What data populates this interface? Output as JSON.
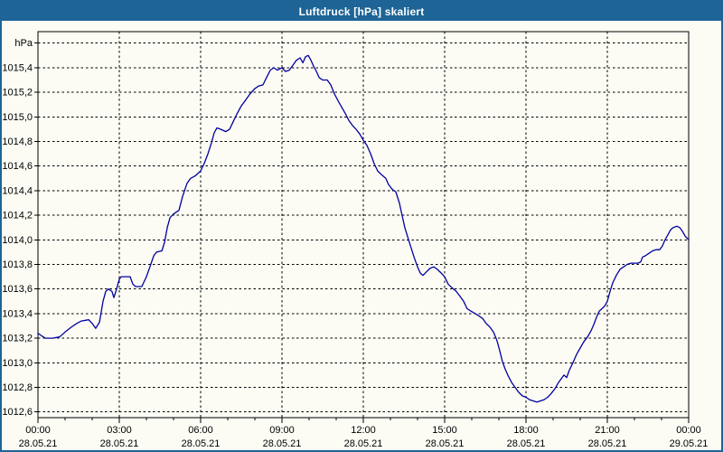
{
  "window": {
    "title": "Luftdruck [hPa] skaliert"
  },
  "colors": {
    "chrome_blue": "#1e6496",
    "title_text": "#ffffff",
    "content_bg": "#fcfcf5",
    "line": "#0000a0",
    "grid": "#000000",
    "axis": "#000000",
    "text": "#000000"
  },
  "y_axis": {
    "unit_label": "hPa",
    "min": 1012.6,
    "max": 1015.6,
    "step": 0.2,
    "tick_labels": [
      "hPa",
      "1015,4",
      "1015,2",
      "1015,0",
      "1014,8",
      "1014,6",
      "1014,4",
      "1014,2",
      "1014,0",
      "1013,8",
      "1013,6",
      "1013,4",
      "1013,2",
      "1013,0",
      "1012,8",
      "1012,6"
    ]
  },
  "x_axis": {
    "start_hour": 0,
    "end_hour": 24,
    "major_step_hours": 3,
    "minor_step_hours": 1,
    "ticks": [
      {
        "time": "00:00",
        "date": "28.05.21"
      },
      {
        "time": "03:00",
        "date": "28.05.21"
      },
      {
        "time": "06:00",
        "date": "28.05.21"
      },
      {
        "time": "09:00",
        "date": "28.05.21"
      },
      {
        "time": "12:00",
        "date": "28.05.21"
      },
      {
        "time": "15:00",
        "date": "28.05.21"
      },
      {
        "time": "18:00",
        "date": "28.05.21"
      },
      {
        "time": "21:00",
        "date": "28.05.21"
      },
      {
        "time": "00:00",
        "date": "29.05.21"
      }
    ]
  },
  "chart_data": {
    "type": "line",
    "title": "Luftdruck [hPa] skaliert",
    "ylabel": "hPa",
    "ylim": [
      1012.6,
      1015.6
    ],
    "xlim_hours": [
      0,
      24
    ],
    "x_unit": "hours since 28.05.21 00:00",
    "grid": "dashed",
    "legend": "none",
    "series": [
      {
        "name": "Luftdruck",
        "color": "#0000a0",
        "points": [
          [
            0,
            1013.24
          ],
          [
            0.13,
            1013.22
          ],
          [
            0.27,
            1013.2
          ],
          [
            0.53,
            1013.2
          ],
          [
            0.8,
            1013.21
          ],
          [
            1,
            1013.25
          ],
          [
            1.23,
            1013.29
          ],
          [
            1.43,
            1013.32
          ],
          [
            1.6,
            1013.34
          ],
          [
            1.87,
            1013.35
          ],
          [
            2,
            1013.32
          ],
          [
            2.13,
            1013.28
          ],
          [
            2.27,
            1013.33
          ],
          [
            2.4,
            1013.5
          ],
          [
            2.5,
            1013.58
          ],
          [
            2.6,
            1013.6
          ],
          [
            2.73,
            1013.58
          ],
          [
            2.8,
            1013.53
          ],
          [
            2.9,
            1013.6
          ],
          [
            3,
            1013.68
          ],
          [
            3.07,
            1013.7
          ],
          [
            3.4,
            1013.7
          ],
          [
            3.5,
            1013.64
          ],
          [
            3.6,
            1013.62
          ],
          [
            3.83,
            1013.62
          ],
          [
            4,
            1013.7
          ],
          [
            4.13,
            1013.78
          ],
          [
            4.27,
            1013.87
          ],
          [
            4.37,
            1013.9
          ],
          [
            4.57,
            1013.91
          ],
          [
            4.67,
            1013.98
          ],
          [
            4.77,
            1014.1
          ],
          [
            4.87,
            1014.18
          ],
          [
            5,
            1014.21
          ],
          [
            5.2,
            1014.24
          ],
          [
            5.33,
            1014.35
          ],
          [
            5.5,
            1014.46
          ],
          [
            5.63,
            1014.5
          ],
          [
            5.8,
            1014.52
          ],
          [
            6,
            1014.56
          ],
          [
            6.13,
            1014.62
          ],
          [
            6.27,
            1014.7
          ],
          [
            6.4,
            1014.79
          ],
          [
            6.5,
            1014.87
          ],
          [
            6.6,
            1014.91
          ],
          [
            6.73,
            1014.9
          ],
          [
            6.93,
            1014.88
          ],
          [
            7.07,
            1014.9
          ],
          [
            7.2,
            1014.96
          ],
          [
            7.33,
            1015.02
          ],
          [
            7.5,
            1015.09
          ],
          [
            7.67,
            1015.14
          ],
          [
            7.83,
            1015.19
          ],
          [
            8,
            1015.23
          ],
          [
            8.13,
            1015.25
          ],
          [
            8.3,
            1015.26
          ],
          [
            8.43,
            1015.32
          ],
          [
            8.57,
            1015.38
          ],
          [
            8.7,
            1015.4
          ],
          [
            8.83,
            1015.38
          ],
          [
            9,
            1015.4
          ],
          [
            9.13,
            1015.37
          ],
          [
            9.27,
            1015.38
          ],
          [
            9.4,
            1015.42
          ],
          [
            9.53,
            1015.46
          ],
          [
            9.67,
            1015.48
          ],
          [
            9.77,
            1015.44
          ],
          [
            9.87,
            1015.49
          ],
          [
            9.97,
            1015.5
          ],
          [
            10.07,
            1015.46
          ],
          [
            10.17,
            1015.41
          ],
          [
            10.27,
            1015.37
          ],
          [
            10.37,
            1015.32
          ],
          [
            10.5,
            1015.3
          ],
          [
            10.67,
            1015.3
          ],
          [
            10.8,
            1015.26
          ],
          [
            10.93,
            1015.19
          ],
          [
            11.07,
            1015.13
          ],
          [
            11.2,
            1015.08
          ],
          [
            11.33,
            1015.03
          ],
          [
            11.47,
            1014.97
          ],
          [
            11.6,
            1014.93
          ],
          [
            11.73,
            1014.9
          ],
          [
            11.87,
            1014.86
          ],
          [
            12,
            1014.81
          ],
          [
            12.13,
            1014.77
          ],
          [
            12.27,
            1014.7
          ],
          [
            12.4,
            1014.62
          ],
          [
            12.53,
            1014.56
          ],
          [
            12.67,
            1014.53
          ],
          [
            12.83,
            1014.5
          ],
          [
            12.93,
            1014.45
          ],
          [
            13.07,
            1014.41
          ],
          [
            13.2,
            1014.39
          ],
          [
            13.33,
            1014.3
          ],
          [
            13.43,
            1014.2
          ],
          [
            13.53,
            1014.1
          ],
          [
            13.67,
            1014.0
          ],
          [
            13.77,
            1013.93
          ],
          [
            13.87,
            1013.86
          ],
          [
            14,
            1013.78
          ],
          [
            14.1,
            1013.73
          ],
          [
            14.2,
            1013.71
          ],
          [
            14.33,
            1013.74
          ],
          [
            14.47,
            1013.77
          ],
          [
            14.6,
            1013.78
          ],
          [
            14.73,
            1013.76
          ],
          [
            14.87,
            1013.73
          ],
          [
            15,
            1013.7
          ],
          [
            15.13,
            1013.64
          ],
          [
            15.27,
            1013.61
          ],
          [
            15.43,
            1013.58
          ],
          [
            15.57,
            1013.54
          ],
          [
            15.7,
            1013.5
          ],
          [
            15.83,
            1013.44
          ],
          [
            15.97,
            1013.42
          ],
          [
            16.13,
            1013.4
          ],
          [
            16.27,
            1013.38
          ],
          [
            16.4,
            1013.36
          ],
          [
            16.53,
            1013.32
          ],
          [
            16.67,
            1013.29
          ],
          [
            16.8,
            1013.25
          ],
          [
            16.93,
            1013.18
          ],
          [
            17.03,
            1013.1
          ],
          [
            17.13,
            1013.01
          ],
          [
            17.23,
            1012.95
          ],
          [
            17.33,
            1012.9
          ],
          [
            17.47,
            1012.84
          ],
          [
            17.6,
            1012.8
          ],
          [
            17.73,
            1012.76
          ],
          [
            17.87,
            1012.73
          ],
          [
            18,
            1012.72
          ],
          [
            18.13,
            1012.7
          ],
          [
            18.27,
            1012.69
          ],
          [
            18.4,
            1012.68
          ],
          [
            18.53,
            1012.69
          ],
          [
            18.67,
            1012.7
          ],
          [
            18.8,
            1012.72
          ],
          [
            18.93,
            1012.75
          ],
          [
            19.07,
            1012.79
          ],
          [
            19.2,
            1012.84
          ],
          [
            19.3,
            1012.87
          ],
          [
            19.4,
            1012.9
          ],
          [
            19.5,
            1012.88
          ],
          [
            19.6,
            1012.94
          ],
          [
            19.73,
            1013.0
          ],
          [
            19.87,
            1013.07
          ],
          [
            20,
            1013.12
          ],
          [
            20.13,
            1013.17
          ],
          [
            20.27,
            1013.21
          ],
          [
            20.4,
            1013.26
          ],
          [
            20.5,
            1013.31
          ],
          [
            20.6,
            1013.37
          ],
          [
            20.7,
            1013.42
          ],
          [
            20.8,
            1013.44
          ],
          [
            20.9,
            1013.46
          ],
          [
            21,
            1013.5
          ],
          [
            21.1,
            1013.58
          ],
          [
            21.2,
            1013.65
          ],
          [
            21.33,
            1013.71
          ],
          [
            21.47,
            1013.76
          ],
          [
            21.6,
            1013.78
          ],
          [
            21.73,
            1013.8
          ],
          [
            21.87,
            1013.81
          ],
          [
            22,
            1013.81
          ],
          [
            22.13,
            1013.81
          ],
          [
            22.23,
            1013.82
          ],
          [
            22.3,
            1013.86
          ],
          [
            22.4,
            1013.87
          ],
          [
            22.53,
            1013.89
          ],
          [
            22.67,
            1013.91
          ],
          [
            22.8,
            1013.92
          ],
          [
            22.93,
            1013.92
          ],
          [
            23.03,
            1013.95
          ],
          [
            23.13,
            1014.0
          ],
          [
            23.23,
            1014.04
          ],
          [
            23.33,
            1014.08
          ],
          [
            23.43,
            1014.1
          ],
          [
            23.57,
            1014.11
          ],
          [
            23.67,
            1014.1
          ],
          [
            23.77,
            1014.07
          ],
          [
            23.87,
            1014.03
          ],
          [
            24,
            1014.0
          ]
        ]
      }
    ]
  }
}
